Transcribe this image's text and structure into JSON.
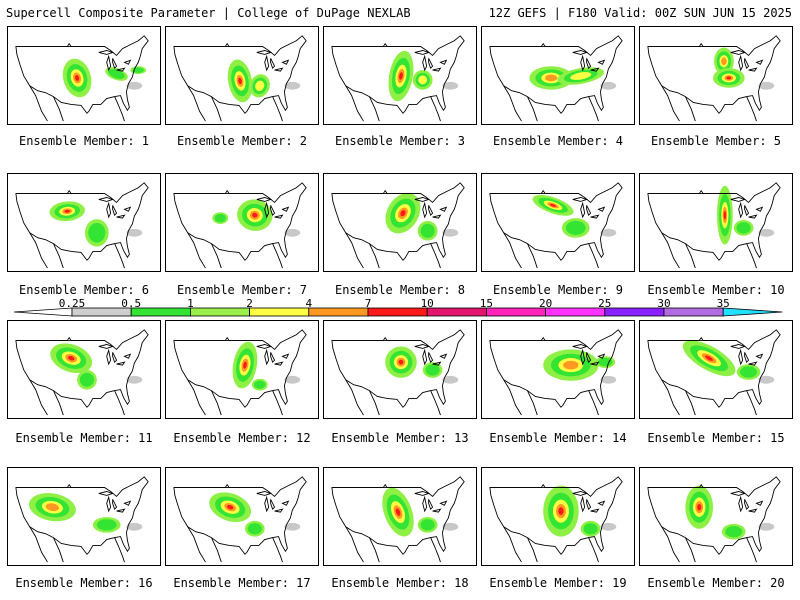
{
  "header": {
    "left_title": "Supercell Composite Parameter | College of DuPage NEXLAB",
    "right_title": "12Z GEFS | F180 Valid: 00Z SUN JUN 15 2025"
  },
  "colorbar": {
    "thresholds": [
      "0.25",
      "0.5",
      "1",
      "2",
      "4",
      "7",
      "10",
      "15",
      "20",
      "25",
      "30",
      "35"
    ],
    "colors": [
      "#cfcfcf",
      "#33e433",
      "#99f04a",
      "#ffff44",
      "#ff9922",
      "#ff1a1a",
      "#e0156b",
      "#ff22bb",
      "#ff33ff",
      "#8a1fff",
      "#b26be0",
      "#22e0ff"
    ]
  },
  "palette": {
    "light_green": "#8ef045",
    "green": "#33e433",
    "yellow": "#ffff44",
    "orange": "#ff9922",
    "red": "#ff1a1a",
    "gray": "#c8c8c8"
  },
  "ensemble": [
    {
      "label": "Ensemble Member: 1"
    },
    {
      "label": "Ensemble Member: 2"
    },
    {
      "label": "Ensemble Member: 3"
    },
    {
      "label": "Ensemble Member: 4"
    },
    {
      "label": "Ensemble Member: 5"
    },
    {
      "label": "Ensemble Member: 6"
    },
    {
      "label": "Ensemble Member: 7"
    },
    {
      "label": "Ensemble Member: 8"
    },
    {
      "label": "Ensemble Member: 9"
    },
    {
      "label": "Ensemble Member: 10"
    },
    {
      "label": "Ensemble Member: 11"
    },
    {
      "label": "Ensemble Member: 12"
    },
    {
      "label": "Ensemble Member: 13"
    },
    {
      "label": "Ensemble Member: 14"
    },
    {
      "label": "Ensemble Member: 15"
    },
    {
      "label": "Ensemble Member: 16"
    },
    {
      "label": "Ensemble Member: 17"
    },
    {
      "label": "Ensemble Member: 18"
    },
    {
      "label": "Ensemble Member: 19"
    },
    {
      "label": "Ensemble Member: 20"
    }
  ]
}
